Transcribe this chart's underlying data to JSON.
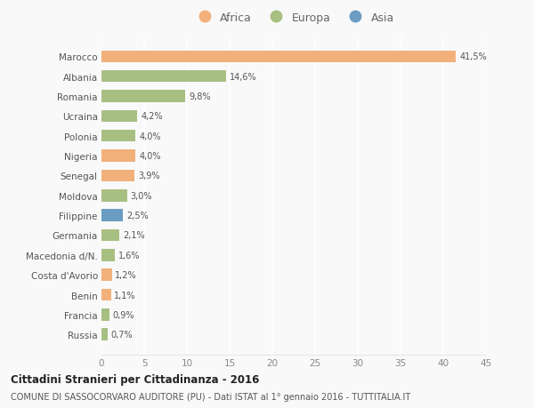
{
  "countries": [
    "Marocco",
    "Albania",
    "Romania",
    "Ucraina",
    "Polonia",
    "Nigeria",
    "Senegal",
    "Moldova",
    "Filippine",
    "Germania",
    "Macedonia d/N.",
    "Costa d'Avorio",
    "Benin",
    "Francia",
    "Russia"
  ],
  "values": [
    41.5,
    14.6,
    9.8,
    4.2,
    4.0,
    4.0,
    3.9,
    3.0,
    2.5,
    2.1,
    1.6,
    1.2,
    1.1,
    0.9,
    0.7
  ],
  "labels": [
    "41,5%",
    "14,6%",
    "9,8%",
    "4,2%",
    "4,0%",
    "4,0%",
    "3,9%",
    "3,0%",
    "2,5%",
    "2,1%",
    "1,6%",
    "1,2%",
    "1,1%",
    "0,9%",
    "0,7%"
  ],
  "continents": [
    "Africa",
    "Europa",
    "Europa",
    "Europa",
    "Europa",
    "Africa",
    "Africa",
    "Europa",
    "Asia",
    "Europa",
    "Europa",
    "Africa",
    "Africa",
    "Europa",
    "Europa"
  ],
  "colors": {
    "Africa": "#F2B07B",
    "Europa": "#A8BF82",
    "Asia": "#6B9DC2"
  },
  "title": "Cittadini Stranieri per Cittadinanza - 2016",
  "subtitle": "COMUNE DI SASSOCORVARO AUDITORE (PU) - Dati ISTAT al 1° gennaio 2016 - TUTTITALIA.IT",
  "xlim": [
    0,
    45
  ],
  "xticks": [
    0,
    5,
    10,
    15,
    20,
    25,
    30,
    35,
    40,
    45
  ],
  "background_color": "#f9f9f9",
  "grid_color": "#ffffff",
  "bar_height": 0.6
}
